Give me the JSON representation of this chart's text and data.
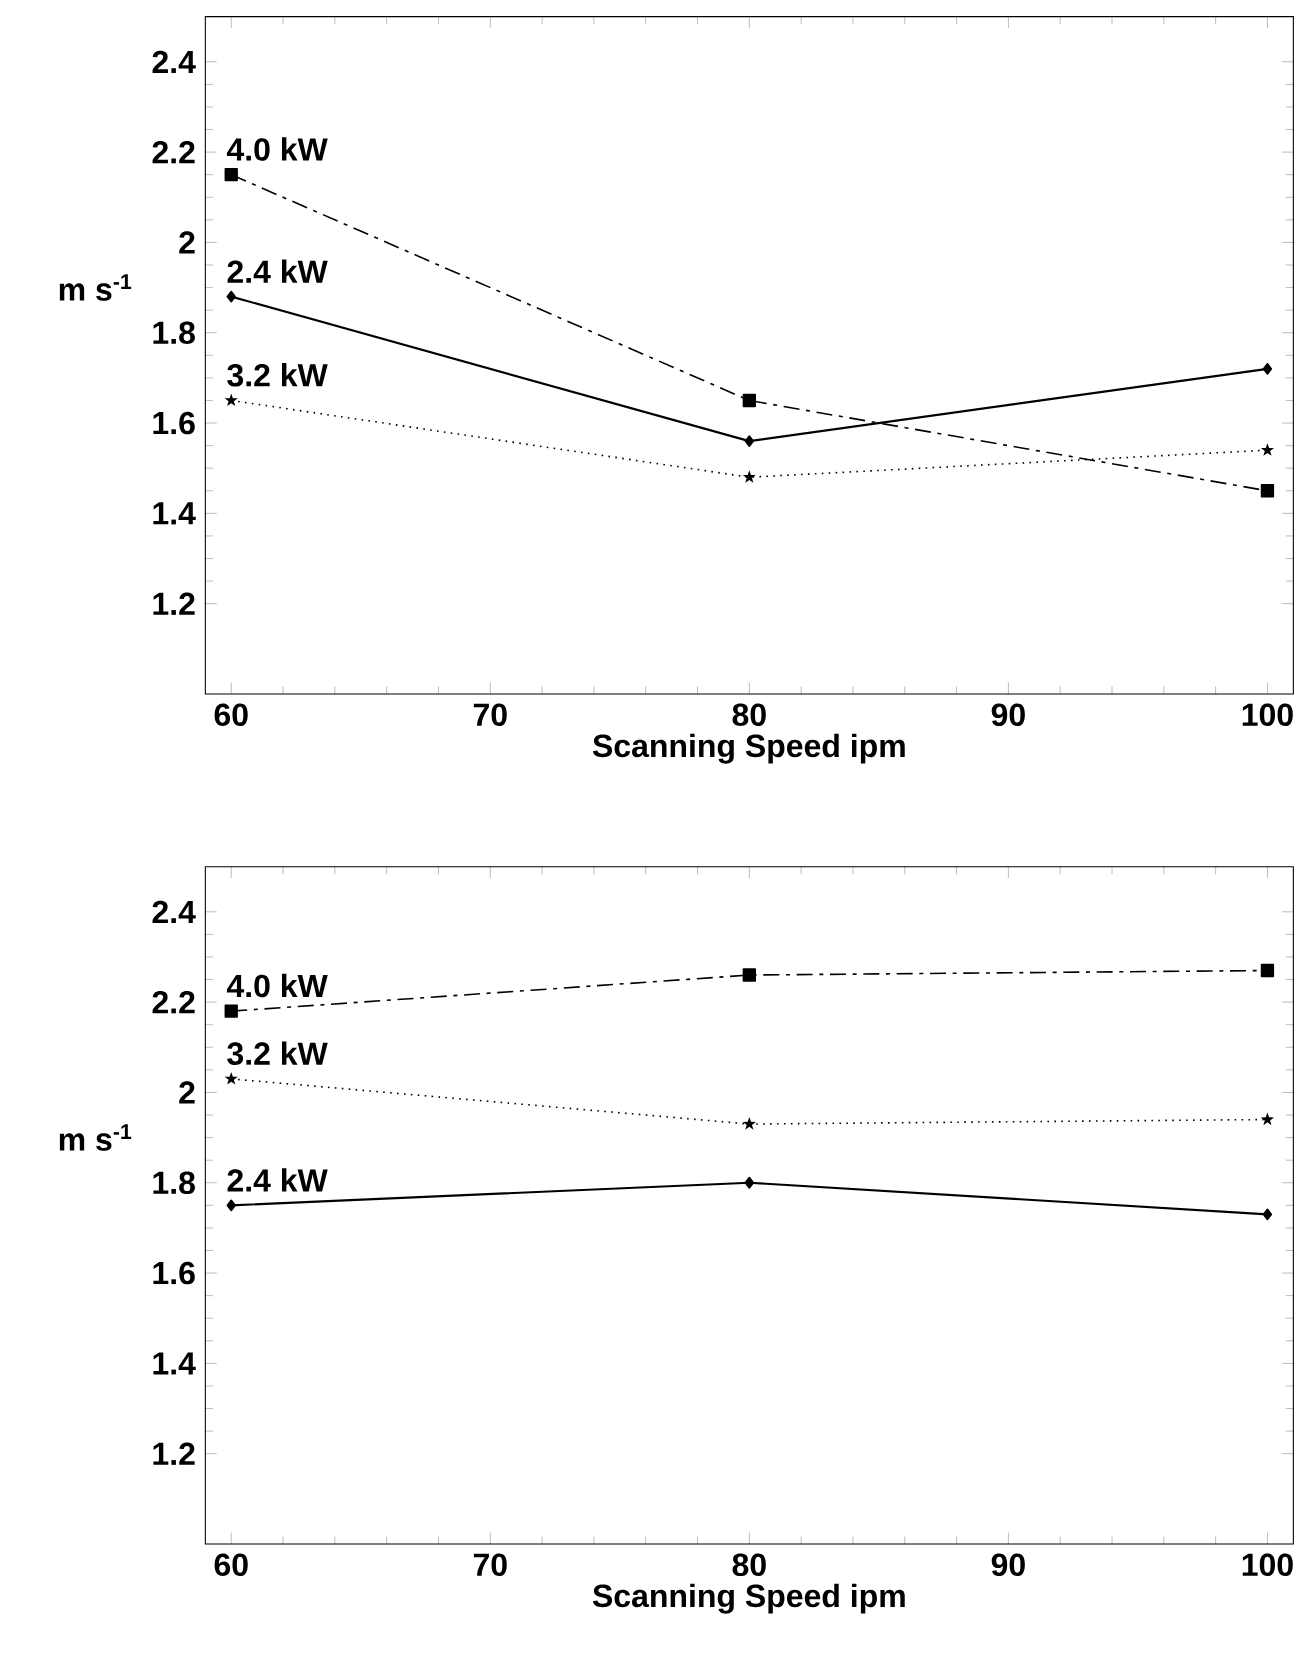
{
  "chart_data": [
    {
      "type": "line",
      "x": [
        60,
        80,
        100
      ],
      "xlabel": "Scanning Speed   ipm",
      "ylabel": "m s$^{-1}$",
      "xlim": [
        59,
        101
      ],
      "ylim": [
        1,
        2.5
      ],
      "xticks": [
        60,
        70,
        80,
        90,
        100
      ],
      "yticks": [
        1.2,
        1.4,
        1.6,
        1.8,
        2,
        2.2,
        2.4
      ],
      "grid": false,
      "legend": false,
      "series": [
        {
          "name": "4.0 kW",
          "color": "#000000",
          "values": [
            2.15,
            1.65,
            1.45
          ],
          "marker": "square",
          "line_style": "dashdot"
        },
        {
          "name": "2.4 kW",
          "color": "#000000",
          "values": [
            1.88,
            1.56,
            1.72
          ],
          "marker": "diamond",
          "line_style": "solid"
        },
        {
          "name": "3.2 kW",
          "color": "#000000",
          "values": [
            1.65,
            1.48,
            1.54
          ],
          "marker": "star",
          "line_style": "dotted"
        }
      ]
    },
    {
      "type": "line",
      "x": [
        60,
        80,
        100
      ],
      "xlabel": "Scanning Speed   ipm",
      "ylabel": "m s$^{-1}$",
      "xlim": [
        59,
        101
      ],
      "ylim": [
        1,
        2.5
      ],
      "xticks": [
        60,
        70,
        80,
        90,
        100
      ],
      "yticks": [
        1.2,
        1.4,
        1.6,
        1.8,
        2,
        2.2,
        2.4
      ],
      "grid": false,
      "legend": false,
      "series": [
        {
          "name": "4.0 kW",
          "color": "#000000",
          "values": [
            2.18,
            2.26,
            2.27
          ],
          "marker": "square",
          "line_style": "dashdot"
        },
        {
          "name": "3.2 kW",
          "color": "#000000",
          "values": [
            2.03,
            1.93,
            1.94
          ],
          "marker": "star",
          "line_style": "dotted"
        },
        {
          "name": "2.4 kW",
          "color": "#000000",
          "values": [
            1.75,
            1.8,
            1.73
          ],
          "marker": "diamond",
          "line_style": "solid"
        }
      ]
    }
  ]
}
